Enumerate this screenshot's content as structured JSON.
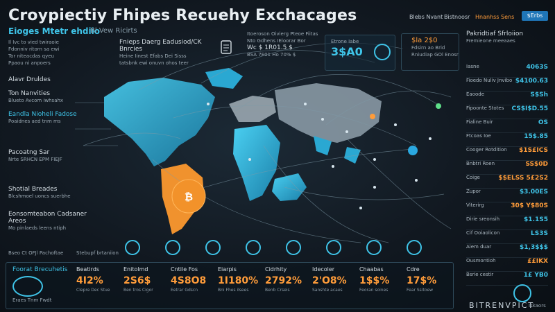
{
  "header": {
    "title": "Croypiectiy Fhipes Recuehy Exchacages",
    "subtitle": "Eioges Mtetr ehdiio",
    "subtitle_suffix": "Bl Vew Ricirts",
    "nav": [
      "Blebs Nvant",
      "Bistnoosr",
      "Hnanhss Sens"
    ],
    "nav_button": "$Erbs"
  },
  "left_panel": {
    "intro_lines": [
      "Il Ivc to vied twiraoie",
      "Fdonniv ritorn sa ewi",
      "Tor niteacdas qyeu",
      "Ppaou ni anpoers"
    ],
    "section_title": "Alavr Druldes",
    "items": [
      {
        "title": "Ton Nanvities",
        "sub": "Blueto Avcom iwhsahx"
      },
      {
        "title": "Eandla Nioheli Fadose",
        "sub": "Poaidnes aed tnm ms"
      },
      {
        "title": "Pacoatng Sar",
        "sub": "Nrte SRHCN EPM FIEJF"
      },
      {
        "title": "Shotial Breades",
        "sub": "Blcshmoel uoncs suerbhe"
      },
      {
        "title": "Eonsomteabon Cadsaner Areos",
        "sub": "Mo pinlaeds leens ntiph"
      }
    ],
    "bottom_caption": "Bseo Ct OFJl Pachoftae",
    "bottom_caption2": "Stebupf brtaniion"
  },
  "top_center": {
    "block1_title": "Fnieps Daerg Eadusiod/CK Bnrcies",
    "block1_lines": [
      "Heine Iinest Efabs Dei Sisss",
      "tatsbnk ewi onuvn ohos teer"
    ],
    "block2_title": "Itoeroson Oivierg Pteoe Fiitas",
    "block2_lines": [
      "Nto Gdhens IEloorar Bor",
      "Wc $ 1R01.5 $",
      "BSA 7E01 Ho 70% $"
    ],
    "badge_title": "Etrone Iabe",
    "badge_value": "3$A0",
    "mini_title": "$la 2$0",
    "mini_lines": [
      "Fdsirn ao Brid",
      "Rniudiap GOl Enosr"
    ]
  },
  "right_panel": {
    "title": "Pakridtiaf Sfrloiion",
    "subtitle": "Fremieone meeaaes",
    "rows": [
      {
        "label": "Iasne",
        "value": "4063S",
        "color": "#3fc4e8"
      },
      {
        "label": "Fioedo Nuliv Jnvibo",
        "value": "$4100.63",
        "color": "#3fc4e8"
      },
      {
        "label": "Eaoode",
        "value": "S$Sh",
        "color": "#3fc4e8"
      },
      {
        "label": "Fipoonte Stotes",
        "value": "CS$I$D.55",
        "color": "#3fc4e8"
      },
      {
        "label": "Fialine Buir",
        "value": "OS",
        "color": "#3fc4e8"
      },
      {
        "label": "Ftcoas Ioe",
        "value": "15$.85",
        "color": "#3fc4e8"
      },
      {
        "label": "Cooger Rotdition",
        "value": "$1S£ICS",
        "color": "#ff9c3a"
      },
      {
        "label": "Bnbtri Roen",
        "value": "SS$0D",
        "color": "#ff9c3a"
      },
      {
        "label": "Coige",
        "value": "$$ELSS 5£2S2",
        "color": "#ff9c3a"
      },
      {
        "label": "Zupor",
        "value": "$3.00ES",
        "color": "#3fc4e8"
      },
      {
        "label": "Viterirg",
        "value": "30$ Y$80S",
        "color": "#ff9c3a"
      },
      {
        "label": "Dirie sreonsih",
        "value": "$1.1S5",
        "color": "#3fc4e8"
      },
      {
        "label": "Cif Ooiaolicon",
        "value": "LS3S",
        "color": "#3fc4e8"
      },
      {
        "label": "Aiem duar",
        "value": "$1,3$$$",
        "color": "#3fc4e8"
      },
      {
        "label": "Ousmontioh",
        "value": "££IKX",
        "color": "#ff9c3a"
      },
      {
        "label": "Bsrie cestir",
        "value": "1£ YB0",
        "color": "#3fc4e8"
      }
    ],
    "brand": "BITRENVPICT",
    "brand_sub": "Iskaors"
  },
  "map_icons": [
    "coin-icon",
    "exchange-icon",
    "chart-icon",
    "shield-icon",
    "wallet-icon",
    "network-icon",
    "lock-icon",
    "globe-icon"
  ],
  "bottom_cards": {
    "head_title": "Foorat Brecuhetis",
    "head_sub": "Eraes Tnm Fwdt",
    "cards": [
      {
        "title": "Beatirds",
        "value": "4I2%",
        "sub": "Clepre Dec Stue"
      },
      {
        "title": "Enitolmd",
        "value": "2S6$",
        "sub": "Ben tros Cigor"
      },
      {
        "title": "Cntile Fos",
        "value": "4S8O8",
        "sub": "Eetrar Gdscn"
      },
      {
        "title": "Eiarpis",
        "value": "1I180%",
        "sub": "Bni Fhes ilsees"
      },
      {
        "title": "Cidrhity",
        "value": "2792%",
        "sub": "Benb Crseis"
      },
      {
        "title": "Idecoler",
        "value": "2'O8%",
        "sub": "Sanshte acaes"
      },
      {
        "title": "Chaabas",
        "value": "1$$%",
        "sub": "Feoran soines"
      },
      {
        "title": "Cdre",
        "value": "17$%",
        "sub": "Fear Ssitoew"
      }
    ]
  },
  "colors": {
    "accent_cyan": "#3fc4e8",
    "accent_orange": "#ff9c3a",
    "background": "#111820",
    "button_blue": "#1f76b8"
  }
}
